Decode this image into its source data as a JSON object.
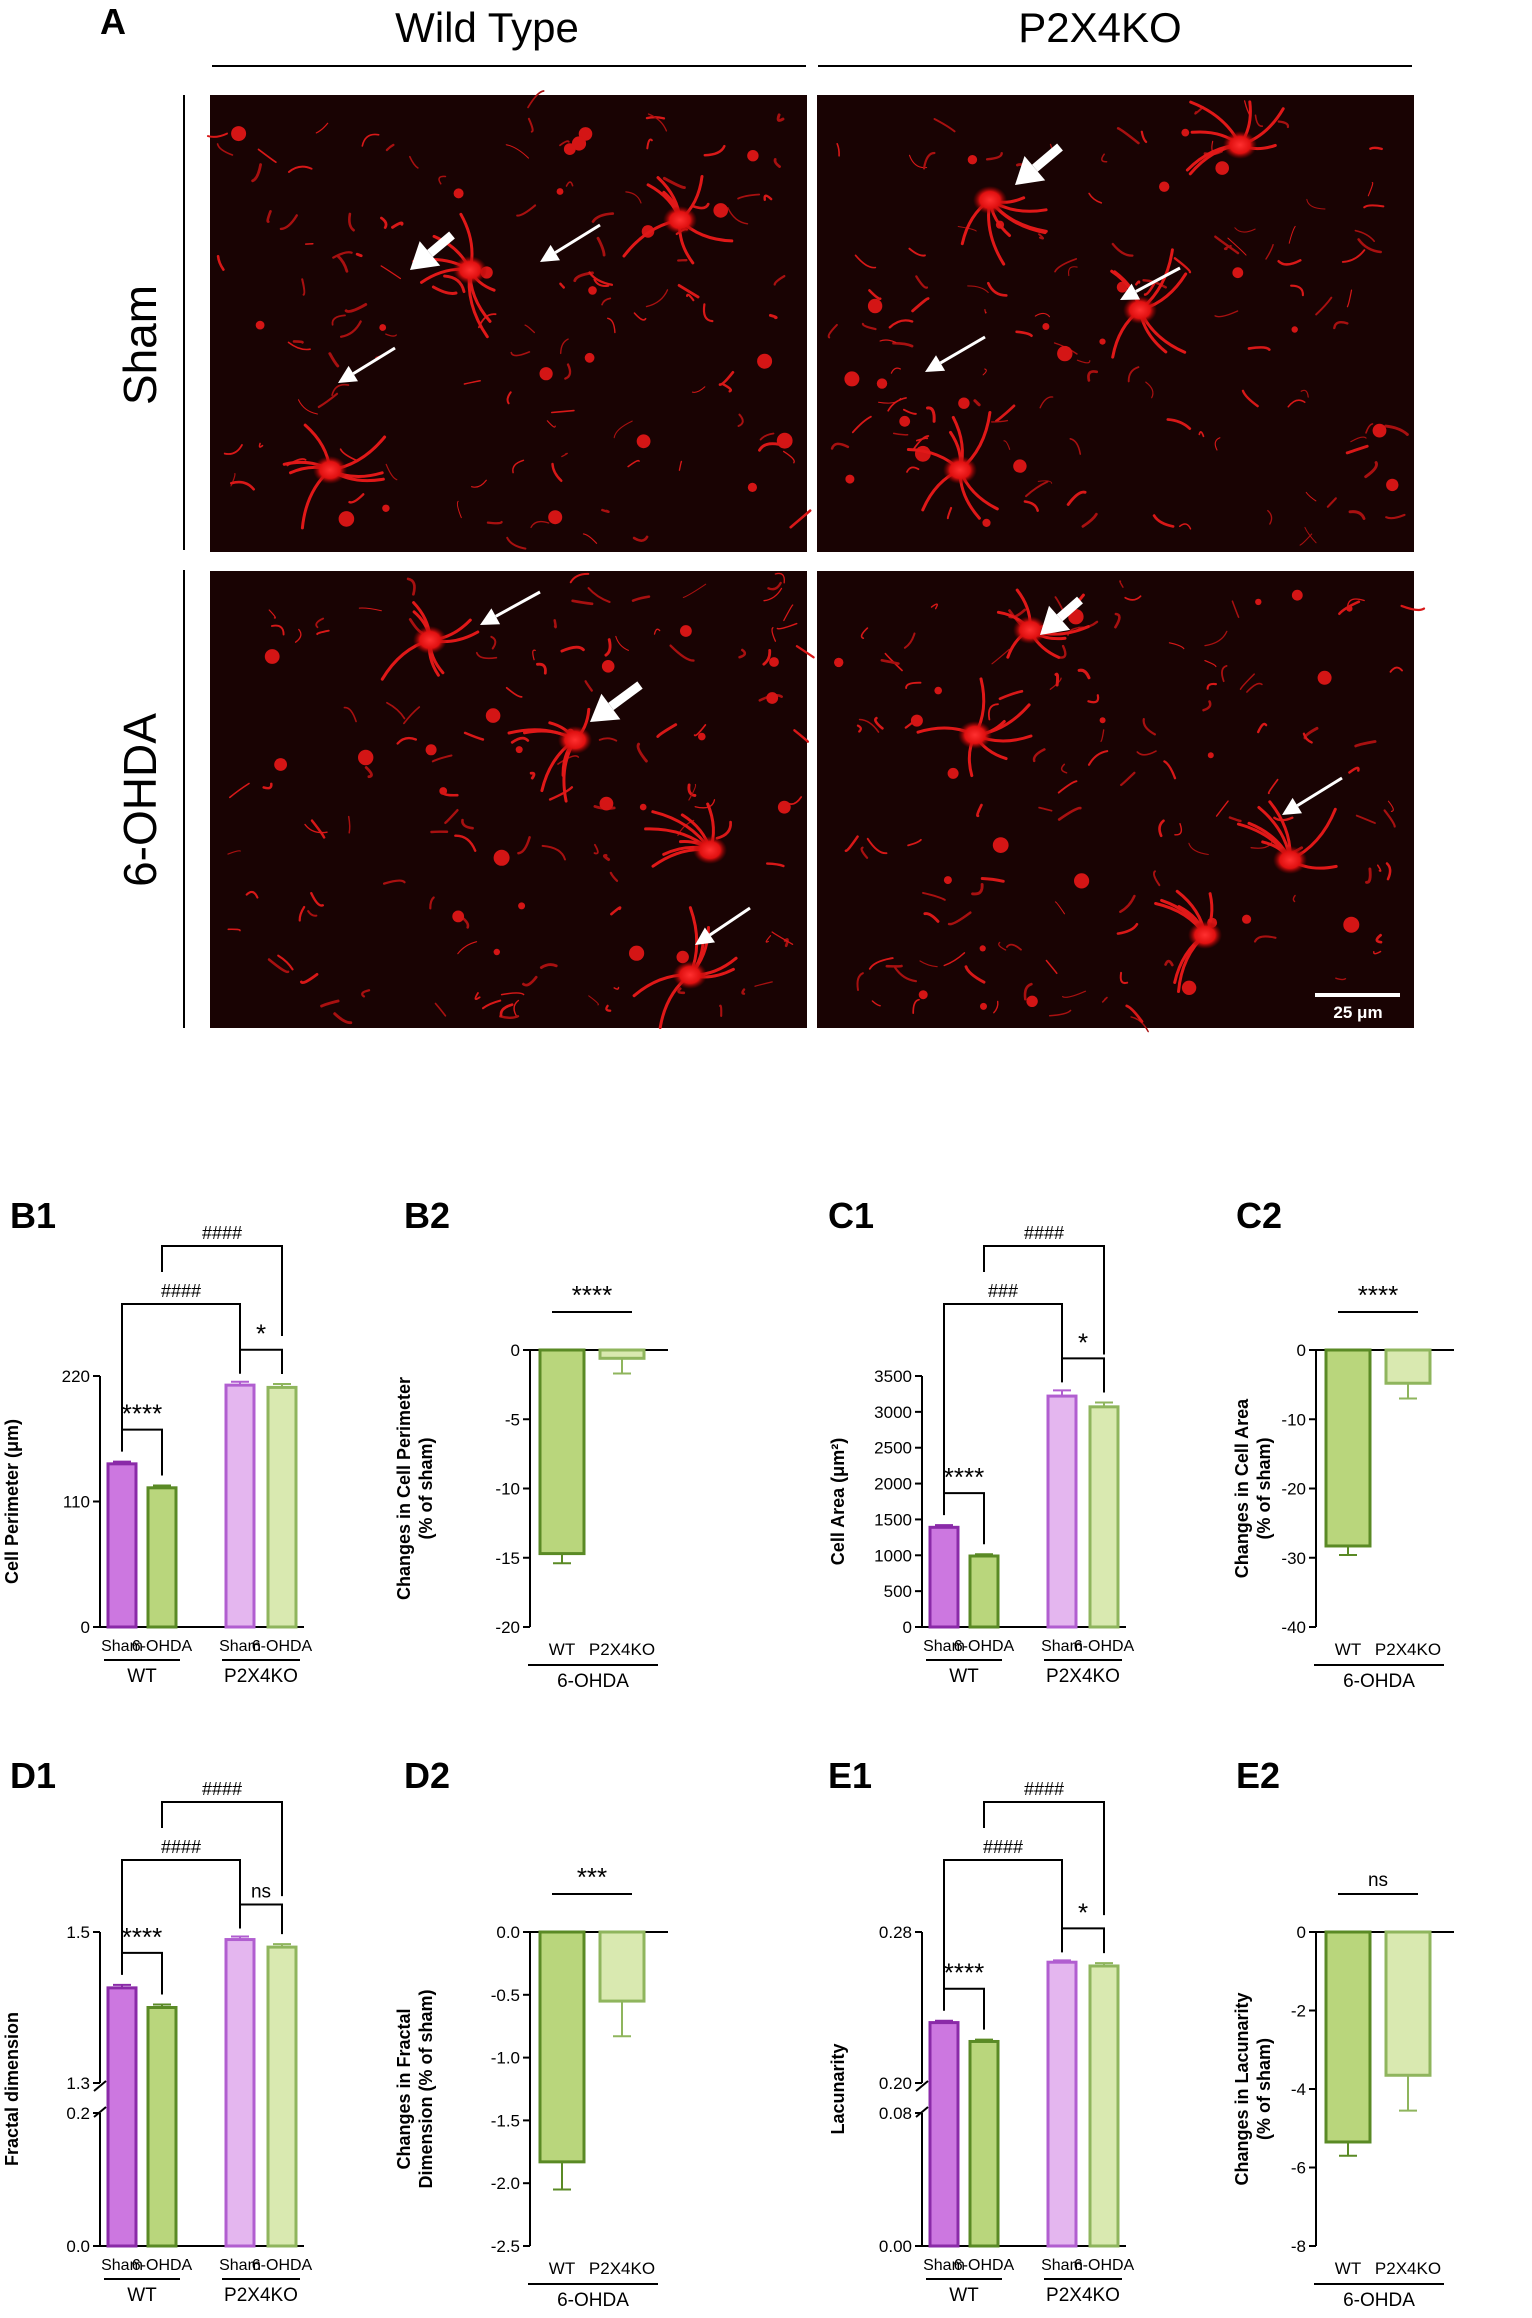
{
  "panelA": {
    "letter": "A",
    "columns": [
      "Wild Type",
      "P2X4KO"
    ],
    "rows": [
      "Sham",
      "6-OHDA"
    ],
    "scale_bar": "25 μm"
  },
  "colors": {
    "wt_sham": "#cc77e0",
    "wt_sham_edge": "#8a2aa8",
    "wt_ohda": "#b9d67c",
    "wt_ohda_edge": "#5a8a25",
    "ko_sham": "#e4b6ef",
    "ko_sham_edge": "#b15ed0",
    "ko_ohda": "#d9e9b0",
    "ko_ohda_edge": "#8fb55d"
  },
  "chart_data": [
    {
      "id": "B1",
      "type": "bar",
      "ylabel": "Cell Perimeter (μm)",
      "categories": [
        "Sham",
        "6-OHDA",
        "Sham",
        "6-OHDA"
      ],
      "groups": [
        "WT",
        "P2X4KO"
      ],
      "values": [
        143,
        122,
        212,
        210
      ],
      "errors": [
        2,
        2,
        3,
        3
      ],
      "yticks": [
        "0",
        "110",
        "220"
      ],
      "ylim": [
        0,
        220
      ],
      "comparisons": [
        {
          "label": "****",
          "from": 0,
          "to": 1
        },
        {
          "label": "*",
          "from": 2,
          "to": 3
        },
        {
          "label": "####",
          "from": 0,
          "to": 2
        },
        {
          "label": "####",
          "from": 1,
          "to": 3
        }
      ]
    },
    {
      "id": "B2",
      "type": "bar",
      "ylabel": "Changes in Cell Perimeter\n(% of sham)",
      "categories": [
        "WT",
        "P2X4KO"
      ],
      "group": "6-OHDA",
      "values": [
        -14.7,
        -0.6
      ],
      "errors": [
        0.7,
        1.1
      ],
      "yticks": [
        "0",
        "-5",
        "-10",
        "-15",
        "-20"
      ],
      "ylim": [
        -20,
        0
      ],
      "comparisons": [
        {
          "label": "****",
          "from": 0,
          "to": 1
        }
      ]
    },
    {
      "id": "C1",
      "type": "bar",
      "ylabel": "Cell Area (μm²)",
      "categories": [
        "Sham",
        "6-OHDA",
        "Sham",
        "6-OHDA"
      ],
      "groups": [
        "WT",
        "P2X4KO"
      ],
      "values": [
        1390,
        990,
        3220,
        3070
      ],
      "errors": [
        30,
        25,
        80,
        60
      ],
      "yticks": [
        "0",
        "500",
        "1000",
        "1500",
        "2000",
        "2500",
        "3000",
        "3500"
      ],
      "ylim": [
        0,
        3500
      ],
      "comparisons": [
        {
          "label": "****",
          "from": 0,
          "to": 1
        },
        {
          "label": "*",
          "from": 2,
          "to": 3
        },
        {
          "label": "###",
          "from": 0,
          "to": 2
        },
        {
          "label": "####",
          "from": 1,
          "to": 3
        }
      ]
    },
    {
      "id": "C2",
      "type": "bar",
      "ylabel": "Changes in Cell Area\n(% of sham)",
      "categories": [
        "WT",
        "P2X4KO"
      ],
      "group": "6-OHDA",
      "values": [
        -28.3,
        -4.8
      ],
      "errors": [
        1.3,
        2.2
      ],
      "yticks": [
        "0",
        "-10",
        "-20",
        "-30",
        "-40"
      ],
      "ylim": [
        -40,
        0
      ],
      "comparisons": [
        {
          "label": "****",
          "from": 0,
          "to": 1
        }
      ]
    },
    {
      "id": "D1",
      "type": "bar",
      "ylabel": "Fractal dimension",
      "categories": [
        "Sham",
        "6-OHDA",
        "Sham",
        "6-OHDA"
      ],
      "groups": [
        "WT",
        "P2X4KO"
      ],
      "values": [
        1.426,
        1.4,
        1.49,
        1.48
      ],
      "errors": [
        0.004,
        0.004,
        0.004,
        0.004
      ],
      "yticks_lower": [
        "0.0",
        "0.2"
      ],
      "yticks_upper": [
        "1.3",
        "1.5"
      ],
      "lower_range": [
        0,
        0.2
      ],
      "upper_range": [
        1.3,
        1.5
      ],
      "comparisons": [
        {
          "label": "****",
          "from": 0,
          "to": 1
        },
        {
          "label": "ns",
          "from": 2,
          "to": 3
        },
        {
          "label": "####",
          "from": 0,
          "to": 2
        },
        {
          "label": "####",
          "from": 1,
          "to": 3
        }
      ]
    },
    {
      "id": "D2",
      "type": "bar",
      "ylabel": "Changes in Fractal\nDimension (% of sham)",
      "categories": [
        "WT",
        "P2X4KO"
      ],
      "group": "6-OHDA",
      "values": [
        -1.83,
        -0.55
      ],
      "errors": [
        0.22,
        0.28
      ],
      "yticks": [
        "0.0",
        "-0.5",
        "-1.0",
        "-1.5",
        "-2.0",
        "-2.5"
      ],
      "ylim": [
        -2.5,
        0
      ],
      "comparisons": [
        {
          "label": "***",
          "from": 0,
          "to": 1
        }
      ]
    },
    {
      "id": "E1",
      "type": "bar",
      "ylabel": "Lacunarity",
      "categories": [
        "Sham",
        "6-OHDA",
        "Sham",
        "6-OHDA"
      ],
      "groups": [
        "WT",
        "P2X4KO"
      ],
      "values": [
        0.232,
        0.222,
        0.264,
        0.262
      ],
      "errors": [
        0.001,
        0.001,
        0.001,
        0.0015
      ],
      "yticks_lower": [
        "0.00",
        "0.08"
      ],
      "yticks_upper": [
        "0.20",
        "0.28"
      ],
      "lower_range": [
        0,
        0.08
      ],
      "upper_range": [
        0.2,
        0.28
      ],
      "comparisons": [
        {
          "label": "****",
          "from": 0,
          "to": 1
        },
        {
          "label": "*",
          "from": 2,
          "to": 3
        },
        {
          "label": "####",
          "from": 0,
          "to": 2
        },
        {
          "label": "####",
          "from": 1,
          "to": 3
        }
      ]
    },
    {
      "id": "E2",
      "type": "bar",
      "ylabel": "Changes in Lacunarity\n(% of sham)",
      "categories": [
        "WT",
        "P2X4KO"
      ],
      "group": "6-OHDA",
      "values": [
        -5.35,
        -3.65
      ],
      "errors": [
        0.35,
        0.9
      ],
      "yticks": [
        "0",
        "-2",
        "-4",
        "-6",
        "-8"
      ],
      "ylim": [
        -8,
        0
      ],
      "comparisons": [
        {
          "label": "ns",
          "from": 0,
          "to": 1
        }
      ]
    }
  ]
}
